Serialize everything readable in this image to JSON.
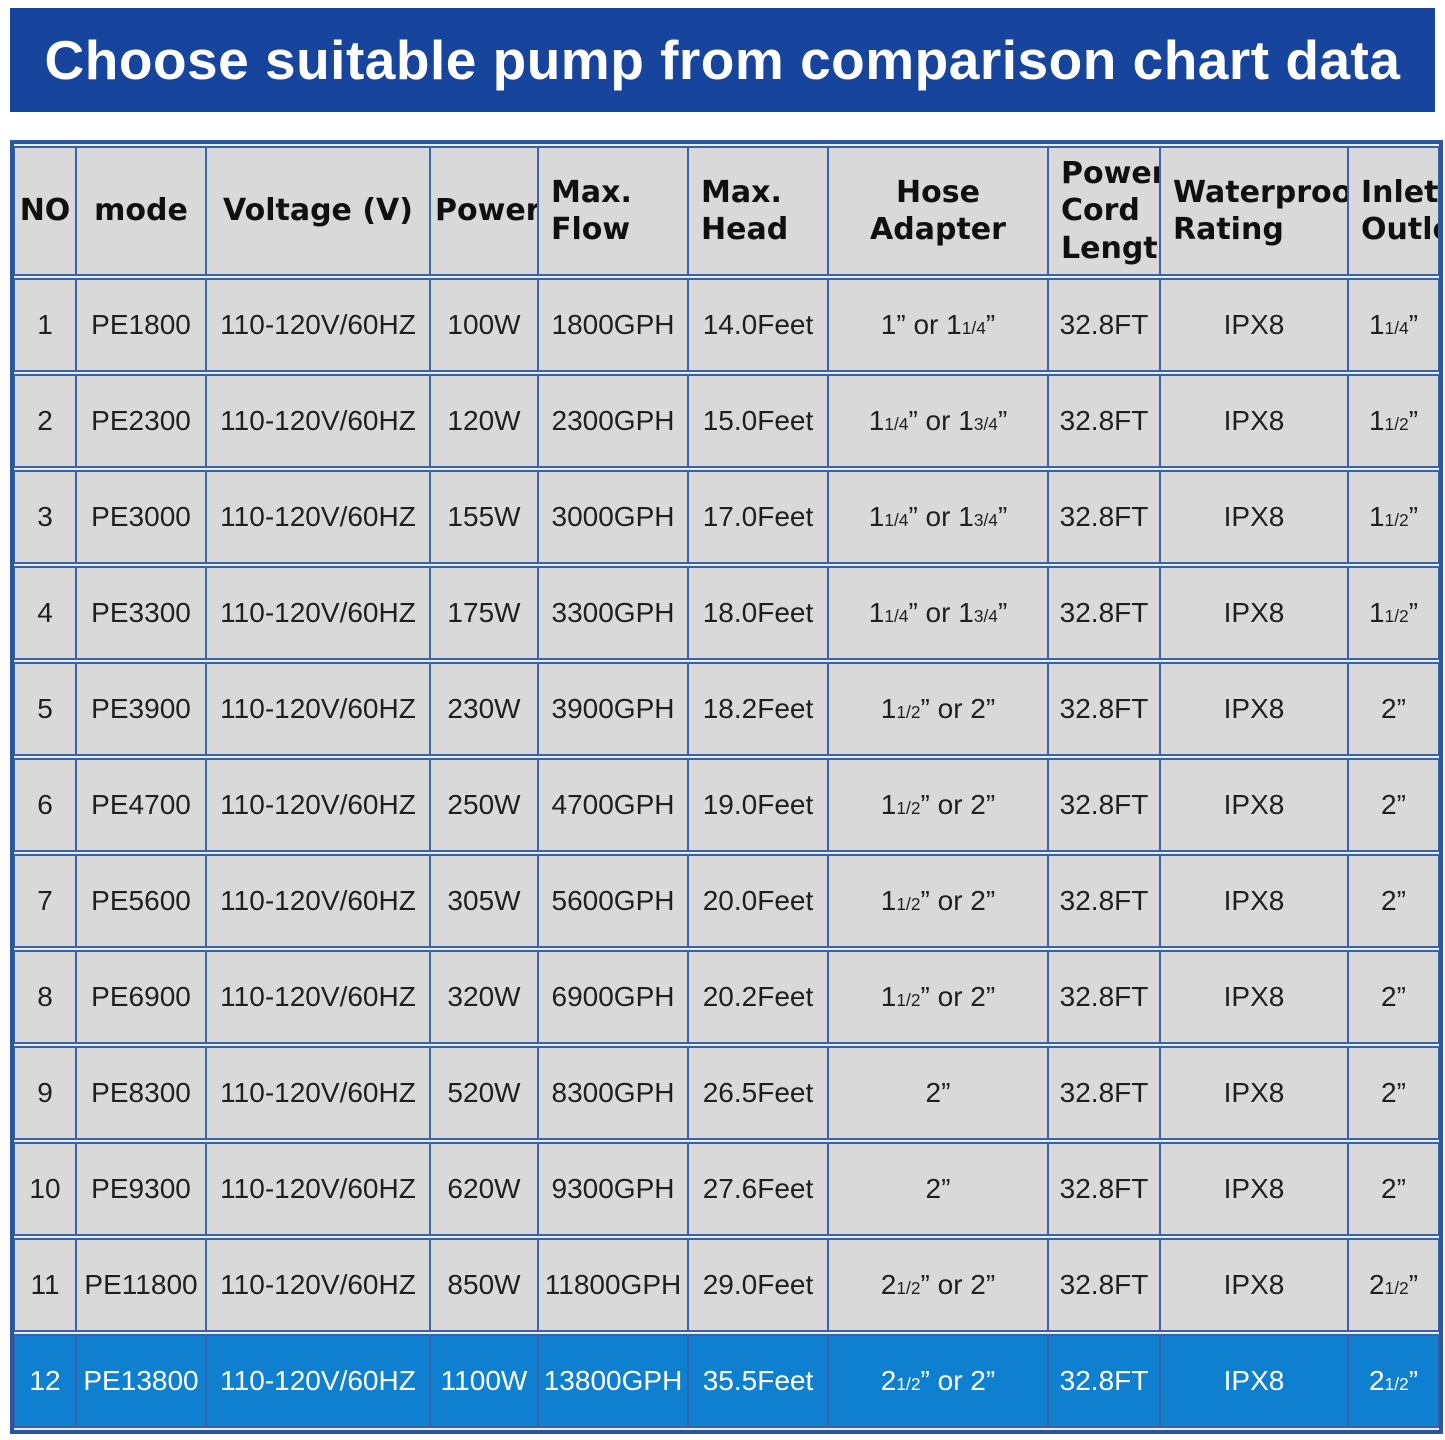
{
  "colors": {
    "banner_bg": "#17459e",
    "banner_text": "#ffffff",
    "cell_bg": "#d9d9d9",
    "border": "#3a62a8",
    "outer_border": "#2b55a0",
    "highlight_bg": "#0e80cf",
    "highlight_text": "#ffffff",
    "data_text": "#1f1f1f"
  },
  "chart_data": {
    "type": "table",
    "title": "Choose suitable pump from comparison chart data",
    "columns": [
      {
        "label": "NO",
        "display": "NO",
        "align": "center"
      },
      {
        "label": "mode",
        "display": "mode",
        "align": "center"
      },
      {
        "label": "Voltage (V)",
        "display": "Voltage (V)",
        "align": "center"
      },
      {
        "label": "Power",
        "display": "Power",
        "align": "center"
      },
      {
        "label": "Max. Flow",
        "display": "Max.\nFlow",
        "align": "left"
      },
      {
        "label": "Max. Head",
        "display": "Max.\nHead",
        "align": "left"
      },
      {
        "label": "Hose Adapter",
        "display": "Hose Adapter",
        "align": "center"
      },
      {
        "label": "Power Cord Length",
        "display": "Power\nCord\nLength",
        "align": "left"
      },
      {
        "label": "Waterproof Rating",
        "display": "Waterproof\nRating",
        "align": "left"
      },
      {
        "label": "Inlet/Outlet",
        "display": "Inlet/\nOutlet",
        "align": "left"
      }
    ],
    "rows": [
      [
        "1",
        "PE1800",
        "110-120V/60HZ",
        "100W",
        "1800GPH",
        "14.0Feet",
        "1” or 1¼”",
        "32.8FT",
        "IPX8",
        "1¼”"
      ],
      [
        "2",
        "PE2300",
        "110-120V/60HZ",
        "120W",
        "2300GPH",
        "15.0Feet",
        "1¼” or 1¾”",
        "32.8FT",
        "IPX8",
        "1½”"
      ],
      [
        "3",
        "PE3000",
        "110-120V/60HZ",
        "155W",
        "3000GPH",
        "17.0Feet",
        "1¼” or 1¾”",
        "32.8FT",
        "IPX8",
        "1½”"
      ],
      [
        "4",
        "PE3300",
        "110-120V/60HZ",
        "175W",
        "3300GPH",
        "18.0Feet",
        "1¼” or 1¾”",
        "32.8FT",
        "IPX8",
        "1½”"
      ],
      [
        "5",
        "PE3900",
        "110-120V/60HZ",
        "230W",
        "3900GPH",
        "18.2Feet",
        "1½” or 2”",
        "32.8FT",
        "IPX8",
        "2”"
      ],
      [
        "6",
        "PE4700",
        "110-120V/60HZ",
        "250W",
        "4700GPH",
        "19.0Feet",
        "1½” or 2”",
        "32.8FT",
        "IPX8",
        "2”"
      ],
      [
        "7",
        "PE5600",
        "110-120V/60HZ",
        "305W",
        "5600GPH",
        "20.0Feet",
        "1½” or 2”",
        "32.8FT",
        "IPX8",
        "2”"
      ],
      [
        "8",
        "PE6900",
        "110-120V/60HZ",
        "320W",
        "6900GPH",
        "20.2Feet",
        "1½” or 2”",
        "32.8FT",
        "IPX8",
        "2”"
      ],
      [
        "9",
        "PE8300",
        "110-120V/60HZ",
        "520W",
        "8300GPH",
        "26.5Feet",
        "2”",
        "32.8FT",
        "IPX8",
        "2”"
      ],
      [
        "10",
        "PE9300",
        "110-120V/60HZ",
        "620W",
        "9300GPH",
        "27.6Feet",
        "2”",
        "32.8FT",
        "IPX8",
        "2”"
      ],
      [
        "11",
        "PE11800",
        "110-120V/60HZ",
        "850W",
        "11800GPH",
        "29.0Feet",
        "2½” or 2”",
        "32.8FT",
        "IPX8",
        "2½”"
      ],
      [
        "12",
        "PE13800",
        "110-120V/60HZ",
        "1100W",
        "13800GPH",
        "35.5Feet",
        "2½” or 2”",
        "32.8FT",
        "IPX8",
        "2½”"
      ]
    ],
    "highlighted_row_number": 12,
    "legend_position": "none",
    "grid": true
  }
}
